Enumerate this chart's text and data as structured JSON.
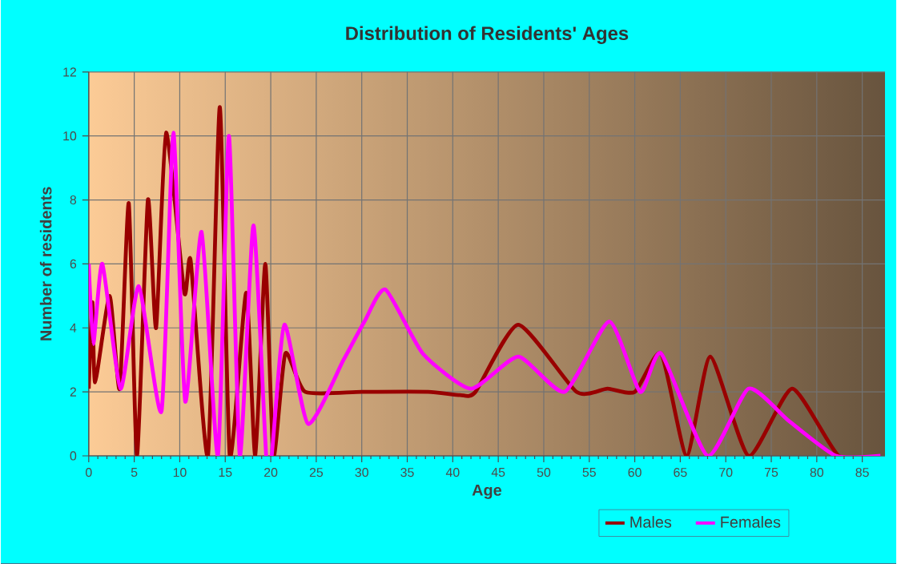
{
  "chart_data": {
    "type": "line",
    "title": "Distribution of Residents' Ages",
    "xlabel": "Age",
    "ylabel": "Number of residents",
    "xlim": [
      0,
      87.5
    ],
    "ylim": [
      0,
      12
    ],
    "xticks": [
      0,
      5,
      10,
      15,
      20,
      25,
      30,
      35,
      40,
      45,
      50,
      55,
      60,
      65,
      70,
      75,
      80,
      85
    ],
    "yticks": [
      0,
      2,
      4,
      6,
      8,
      10,
      12
    ],
    "grid": true,
    "legend": "bottom",
    "line_style": "solid",
    "series": [
      {
        "name": "Males",
        "color": "#990000",
        "x": [
          0,
          0.4,
          0.7,
          2.3,
          3.4,
          4.4,
          5.3,
          6.5,
          7.4,
          8.5,
          10.5,
          11.2,
          13.1,
          14.4,
          15.5,
          17.3,
          18.3,
          19.4,
          20.3,
          21.6,
          23.8,
          30,
          37.3,
          40.8,
          42.5,
          47.2,
          53.6,
          57,
          60,
          62.9,
          65.7,
          68.3,
          72.5,
          77.3,
          82.4,
          87
        ],
        "values": [
          2.1,
          4.8,
          2.3,
          5,
          2.1,
          7.9,
          0,
          8,
          4,
          10.1,
          5.1,
          6.1,
          0,
          10.9,
          0,
          5.1,
          0,
          6,
          0,
          3.2,
          2,
          2,
          2,
          1.9,
          2,
          4.1,
          2,
          2.1,
          2,
          3.2,
          0,
          3.1,
          0,
          2.1,
          0,
          0
        ]
      },
      {
        "name": "Females",
        "color": "#ff00ff",
        "x": [
          0,
          0.5,
          1.5,
          3.5,
          5.5,
          8,
          9.3,
          10.6,
          12.4,
          14.2,
          15.4,
          16.6,
          18.1,
          19.5,
          20.1,
          21.5,
          24.1,
          28,
          30.3,
          32.6,
          36.7,
          42,
          47.2,
          52.3,
          57.2,
          60.6,
          62.9,
          68,
          72.5,
          76.9,
          82.1,
          87
        ],
        "values": [
          6,
          3.5,
          6,
          2.1,
          5.3,
          1.4,
          10.1,
          1.7,
          7,
          0,
          10,
          0,
          7.2,
          0,
          0,
          4.1,
          1,
          3,
          4.2,
          5.2,
          3.2,
          2.1,
          3.1,
          2,
          4.2,
          2,
          3.2,
          0,
          2.1,
          1.1,
          0,
          0
        ]
      }
    ]
  }
}
